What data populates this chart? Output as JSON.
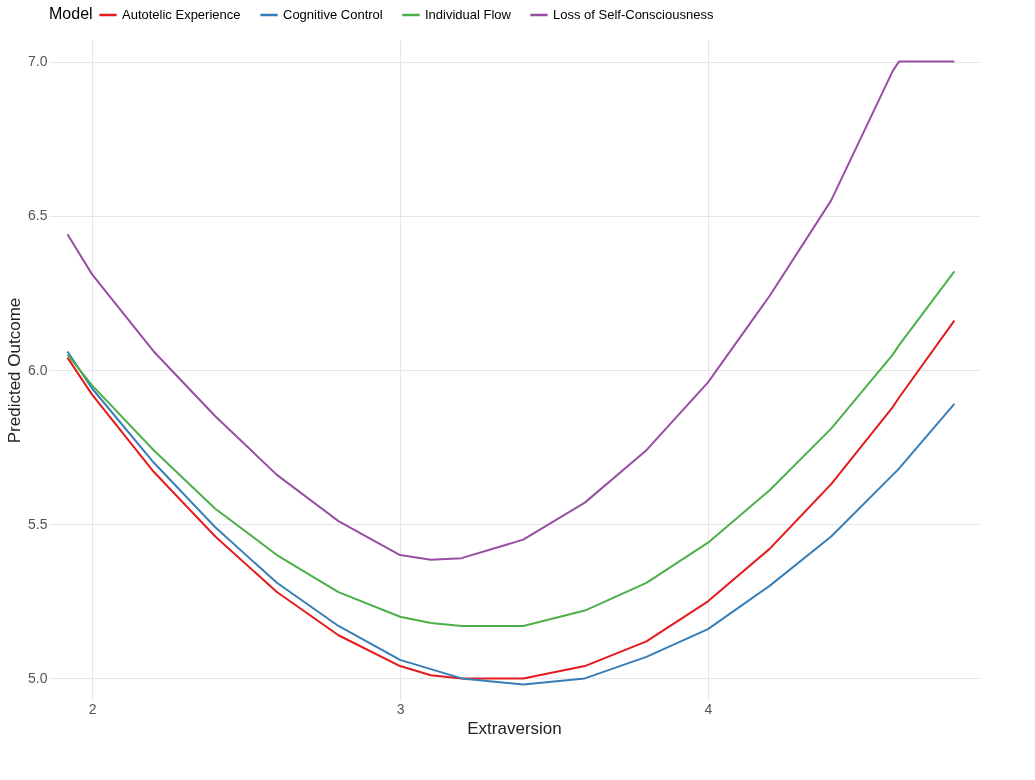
{
  "chart_data": {
    "type": "line",
    "xlabel": "Extraversion",
    "ylabel": "Predicted Outcome",
    "legend_title": "Model",
    "legend": "top",
    "grid": true,
    "marker": "none",
    "line_style": "solid",
    "x": [
      1.92,
      2.0,
      2.2,
      2.4,
      2.6,
      2.8,
      3.0,
      3.1,
      3.2,
      3.4,
      3.6,
      3.8,
      4.0,
      4.2,
      4.4,
      4.6,
      4.62,
      4.8
    ],
    "xlim": [
      1.86,
      4.88
    ],
    "ylim": [
      4.93,
      7.07
    ],
    "xticks": [
      2,
      3,
      4
    ],
    "yticks": [
      {
        "value": 5,
        "label": "5.0"
      },
      {
        "value": 5.5,
        "label": "5.5"
      },
      {
        "value": 6,
        "label": "6.0"
      },
      {
        "value": 6.5,
        "label": "6.5"
      },
      {
        "value": 7,
        "label": "7.0"
      }
    ],
    "series": [
      {
        "name": "Autotelic Experience",
        "color": "#e41a1c",
        "values": [
          6.04,
          5.92,
          5.67,
          5.46,
          5.28,
          5.14,
          5.04,
          5.01,
          5.0,
          5.0,
          5.04,
          5.12,
          5.25,
          5.42,
          5.63,
          5.88,
          5.91,
          6.16
        ]
      },
      {
        "name": "Cognitive Control",
        "color": "#377eb8",
        "values": [
          6.06,
          5.94,
          5.7,
          5.49,
          5.31,
          5.17,
          5.06,
          5.03,
          5.0,
          4.98,
          5.0,
          5.07,
          5.16,
          5.3,
          5.46,
          5.66,
          5.68,
          5.89
        ]
      },
      {
        "name": "Individual Flow",
        "color": "#4daf4a",
        "values": [
          6.05,
          5.95,
          5.74,
          5.55,
          5.4,
          5.28,
          5.2,
          5.18,
          5.17,
          5.17,
          5.22,
          5.31,
          5.44,
          5.61,
          5.81,
          6.05,
          6.08,
          6.32
        ]
      },
      {
        "name": "Loss of Self-Consciousness",
        "color": "#984ea3",
        "values": [
          6.44,
          6.31,
          6.06,
          5.85,
          5.66,
          5.51,
          5.4,
          5.385,
          5.39,
          5.45,
          5.57,
          5.74,
          5.96,
          6.24,
          6.55,
          6.97,
          7.0,
          7.0
        ]
      }
    ]
  }
}
